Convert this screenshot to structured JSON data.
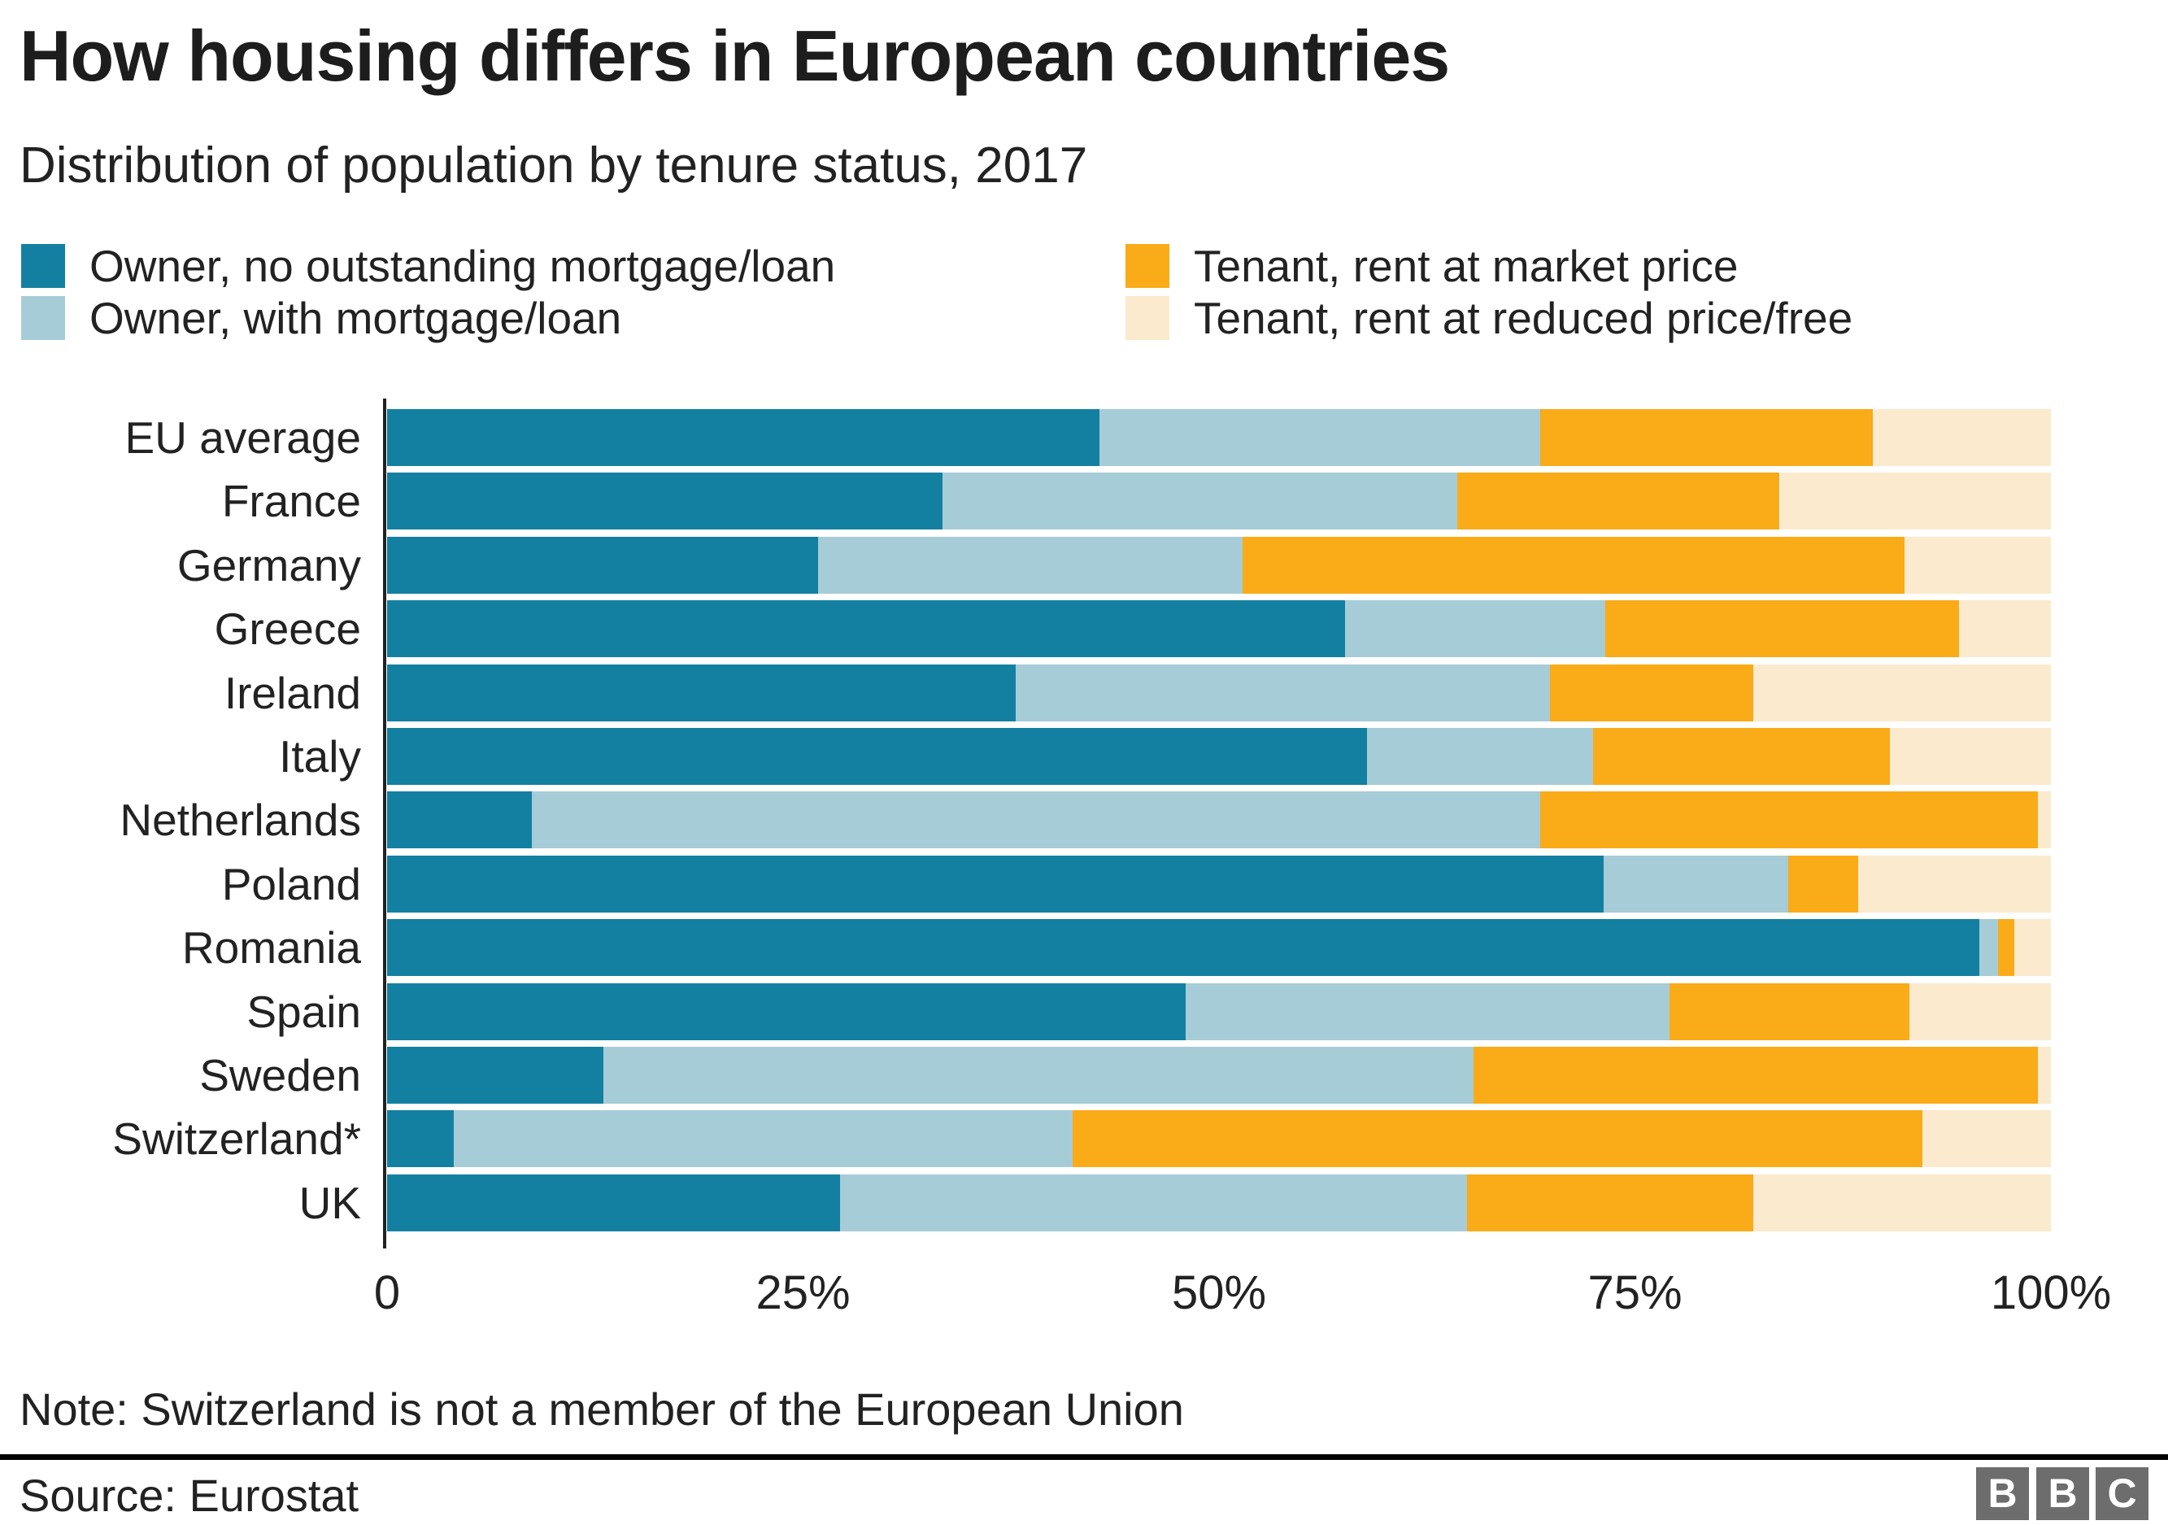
{
  "header": {
    "title": "How housing differs in European countries",
    "subtitle": "Distribution of population by tenure status, 2017"
  },
  "legend": {
    "items": [
      {
        "label": "Owner, no outstanding mortgage/loan",
        "color": "#1380A1"
      },
      {
        "label": "Owner, with mortgage/loan",
        "color": "#A6CCD7"
      },
      {
        "label": "Tenant, rent at market price",
        "color": "#FAAB18"
      },
      {
        "label": "Tenant, rent at reduced price/free",
        "color": "#FBEACD"
      }
    ]
  },
  "chart_data": {
    "type": "bar",
    "stacked": true,
    "orientation": "horizontal",
    "title": "How housing differs in European countries",
    "subtitle": "Distribution of population by tenure status, 2017",
    "xlabel": "",
    "ylabel": "",
    "xlim": [
      0,
      100
    ],
    "x_tick_labels": [
      "0",
      "25%",
      "50%",
      "75%",
      "100%"
    ],
    "x_tick_values": [
      0,
      25,
      50,
      75,
      100
    ],
    "grid": false,
    "legend_position": "top",
    "categories": [
      "EU average",
      "France",
      "Germany",
      "Greece",
      "Ireland",
      "Italy",
      "Netherlands",
      "Poland",
      "Romania",
      "Spain",
      "Sweden",
      "Switzerland*",
      "UK"
    ],
    "series": [
      {
        "name": "Owner, no outstanding mortgage/loan",
        "color": "#1380A1",
        "values": [
          42.8,
          33.4,
          25.9,
          57.6,
          37.8,
          58.9,
          8.7,
          73.1,
          95.7,
          48.0,
          13.0,
          4.0,
          27.2
        ]
      },
      {
        "name": "Owner, with mortgage/loan",
        "color": "#A6CCD7",
        "values": [
          26.5,
          30.9,
          25.5,
          15.6,
          32.1,
          13.6,
          60.6,
          11.1,
          1.1,
          29.1,
          52.3,
          37.2,
          37.7
        ]
      },
      {
        "name": "Tenant, rent at market price",
        "color": "#FAAB18",
        "values": [
          20.0,
          19.4,
          39.8,
          21.3,
          12.2,
          17.8,
          29.9,
          4.2,
          1.0,
          14.4,
          33.9,
          51.1,
          17.2
        ]
      },
      {
        "name": "Tenant, rent at reduced price/free",
        "color": "#FBEACD",
        "values": [
          10.7,
          16.3,
          8.8,
          5.5,
          17.9,
          9.7,
          0.8,
          11.6,
          2.2,
          8.5,
          0.8,
          7.7,
          17.9
        ]
      }
    ]
  },
  "note": "Note: Switzerland is not a member of the European Union",
  "source": "Source: Eurostat",
  "logo": {
    "letters": [
      "B",
      "B",
      "C"
    ],
    "block_color": "#6D6D6D"
  }
}
